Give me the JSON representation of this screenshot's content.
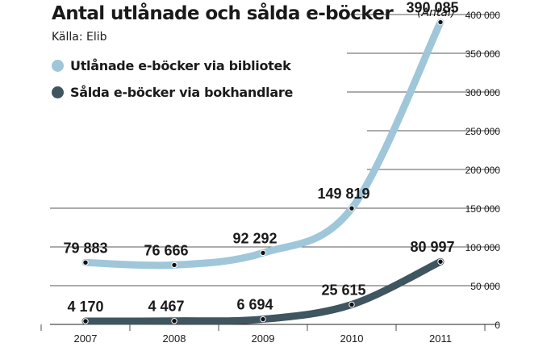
{
  "title": "Antal utlånade och sålda e-böcker",
  "source": "Källa: Elib",
  "unit": "(Antal)",
  "colors": {
    "series1": "#9fc7d9",
    "series2": "#3f5560",
    "grid": "#222222",
    "text": "#1a1a1a"
  },
  "chart_data": {
    "type": "line",
    "x": [
      "2007",
      "2008",
      "2009",
      "2010",
      "2011"
    ],
    "ylim": [
      0,
      400000
    ],
    "yticks": [
      0,
      50000,
      100000,
      150000,
      200000,
      250000,
      300000,
      350000,
      400000
    ],
    "ytick_labels": [
      "0",
      "50 000",
      "100 000",
      "150 000",
      "200 000",
      "250 000",
      "300 000",
      "350 000",
      "400 000"
    ],
    "grid": true,
    "legend": "top-left",
    "series": [
      {
        "name": "Utlånade e-böcker via bibliotek",
        "values": [
          79883,
          76666,
          92292,
          149819,
          390085
        ],
        "labels": [
          "79 883",
          "76 666",
          "92 292",
          "149 819",
          "390 085"
        ]
      },
      {
        "name": "Sålda e-böcker via bokhandlare",
        "values": [
          4170,
          4467,
          6694,
          25615,
          80997
        ],
        "labels": [
          "4 170",
          "4 467",
          "6 694",
          "25 615",
          "80 997"
        ]
      }
    ]
  }
}
